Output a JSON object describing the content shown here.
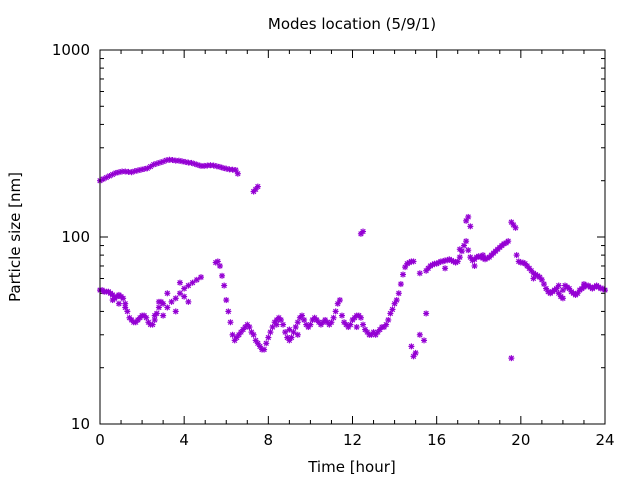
{
  "chart_data": {
    "type": "scatter",
    "title": "Modes location (5/9/1)",
    "xlabel": "Time [hour]",
    "ylabel": "Particle size [nm]",
    "xlim": [
      0,
      24
    ],
    "ylim": [
      10,
      1000
    ],
    "yscale": "log",
    "grid": false,
    "legend": "none",
    "color": "#9400d3",
    "marker": "asterisk",
    "xticks": [
      0,
      4,
      8,
      12,
      16,
      20,
      24
    ],
    "xtick_labels": [
      "0",
      "4",
      "8",
      "12",
      "16",
      "20",
      "24"
    ],
    "yticks": [
      10,
      100,
      1000
    ],
    "ytick_labels": [
      "10",
      "100",
      "1000"
    ],
    "series": [
      {
        "points": [
          [
            0.0,
            200
          ],
          [
            0.15,
            204
          ],
          [
            0.3,
            208
          ],
          [
            0.45,
            212
          ],
          [
            0.6,
            216
          ],
          [
            0.75,
            220
          ],
          [
            0.9,
            222
          ],
          [
            1.05,
            224
          ],
          [
            1.2,
            224
          ],
          [
            1.35,
            223
          ],
          [
            1.5,
            222
          ],
          [
            1.65,
            225
          ],
          [
            1.8,
            227
          ],
          [
            1.95,
            229
          ],
          [
            2.1,
            231
          ],
          [
            2.25,
            233
          ],
          [
            2.4,
            238
          ],
          [
            2.55,
            244
          ],
          [
            2.7,
            247
          ],
          [
            2.85,
            250
          ],
          [
            3.0,
            253
          ],
          [
            3.15,
            257
          ],
          [
            3.3,
            259
          ],
          [
            3.45,
            258
          ],
          [
            3.6,
            256
          ],
          [
            3.75,
            256
          ],
          [
            3.9,
            254
          ],
          [
            4.05,
            252
          ],
          [
            4.2,
            250
          ],
          [
            4.35,
            249
          ],
          [
            4.5,
            246
          ],
          [
            4.65,
            243
          ],
          [
            4.8,
            240
          ],
          [
            4.95,
            240
          ],
          [
            5.1,
            241
          ],
          [
            5.25,
            242
          ],
          [
            5.4,
            241
          ],
          [
            5.55,
            239
          ],
          [
            5.7,
            237
          ],
          [
            5.85,
            234
          ],
          [
            6.0,
            232
          ],
          [
            6.15,
            230
          ],
          [
            6.3,
            229
          ],
          [
            6.45,
            228
          ],
          [
            6.55,
            218
          ],
          [
            7.3,
            175
          ],
          [
            7.4,
            180
          ],
          [
            7.5,
            186
          ],
          [
            12.4,
            104
          ],
          [
            12.5,
            107
          ],
          [
            14.8,
            26
          ],
          [
            14.9,
            23
          ],
          [
            15.0,
            24
          ],
          [
            15.2,
            30
          ],
          [
            15.4,
            28
          ],
          [
            15.5,
            39
          ],
          [
            17.4,
            122
          ],
          [
            17.5,
            128
          ],
          [
            17.6,
            114
          ],
          [
            19.55,
            120
          ],
          [
            19.65,
            116
          ],
          [
            19.75,
            112
          ],
          [
            19.55,
            22.5
          ]
        ]
      },
      {
        "points": [
          [
            0.0,
            52
          ],
          [
            0.1,
            52
          ],
          [
            0.2,
            51
          ],
          [
            0.3,
            51
          ],
          [
            0.4,
            51
          ],
          [
            0.5,
            50
          ],
          [
            0.6,
            49
          ],
          [
            0.7,
            47
          ],
          [
            0.8,
            48
          ],
          [
            0.9,
            49
          ],
          [
            1.0,
            48
          ],
          [
            1.1,
            47
          ],
          [
            1.2,
            44
          ],
          [
            1.3,
            40
          ],
          [
            1.4,
            37
          ],
          [
            1.5,
            36
          ],
          [
            1.6,
            35
          ],
          [
            1.7,
            35
          ],
          [
            1.8,
            36
          ],
          [
            1.9,
            37
          ],
          [
            2.0,
            38
          ],
          [
            2.1,
            38
          ],
          [
            2.2,
            37
          ],
          [
            2.3,
            35
          ],
          [
            2.4,
            34
          ],
          [
            2.5,
            34
          ],
          [
            2.6,
            36
          ],
          [
            2.7,
            39
          ],
          [
            2.8,
            42
          ],
          [
            2.9,
            45
          ],
          [
            3.0,
            44
          ],
          [
            3.2,
            42
          ],
          [
            3.4,
            45
          ],
          [
            3.6,
            47
          ],
          [
            3.8,
            50
          ],
          [
            4.0,
            53
          ],
          [
            4.2,
            55
          ],
          [
            4.4,
            57
          ],
          [
            4.6,
            59
          ],
          [
            4.8,
            61
          ],
          [
            2.6,
            38
          ],
          [
            2.8,
            45
          ],
          [
            3.0,
            38
          ],
          [
            3.2,
            50
          ],
          [
            3.6,
            40
          ],
          [
            3.8,
            57
          ],
          [
            4.0,
            48
          ],
          [
            4.2,
            45
          ],
          [
            0.6,
            46
          ],
          [
            0.9,
            44
          ],
          [
            1.2,
            42
          ],
          [
            5.5,
            73
          ],
          [
            5.6,
            74
          ],
          [
            5.7,
            70
          ],
          [
            5.8,
            62
          ],
          [
            5.9,
            55
          ],
          [
            6.0,
            46
          ],
          [
            6.1,
            40
          ],
          [
            6.2,
            35
          ],
          [
            6.3,
            30
          ],
          [
            6.4,
            28
          ],
          [
            6.5,
            29
          ],
          [
            6.6,
            30
          ],
          [
            6.7,
            31
          ],
          [
            6.8,
            32
          ],
          [
            6.9,
            33
          ],
          [
            7.0,
            34
          ],
          [
            7.1,
            33
          ],
          [
            7.2,
            31
          ],
          [
            7.3,
            30
          ],
          [
            7.4,
            28
          ],
          [
            7.5,
            27
          ],
          [
            7.6,
            26
          ],
          [
            7.7,
            25
          ],
          [
            7.8,
            25
          ],
          [
            7.9,
            27
          ],
          [
            8.0,
            29
          ],
          [
            8.1,
            31
          ],
          [
            8.2,
            33
          ],
          [
            8.3,
            35
          ],
          [
            8.4,
            36
          ],
          [
            8.5,
            37
          ],
          [
            8.6,
            36
          ],
          [
            8.7,
            34
          ],
          [
            8.8,
            31
          ],
          [
            8.9,
            29
          ],
          [
            9.0,
            28
          ],
          [
            9.1,
            29
          ],
          [
            9.2,
            31
          ],
          [
            9.3,
            33
          ],
          [
            9.4,
            35
          ],
          [
            9.5,
            37
          ],
          [
            9.6,
            38
          ],
          [
            9.7,
            36
          ],
          [
            9.8,
            34
          ],
          [
            9.9,
            33
          ],
          [
            10.0,
            34
          ],
          [
            10.1,
            36
          ],
          [
            10.2,
            37
          ],
          [
            10.3,
            36
          ],
          [
            10.4,
            35
          ],
          [
            10.5,
            34
          ],
          [
            10.6,
            35
          ],
          [
            10.7,
            36
          ],
          [
            10.8,
            35
          ],
          [
            10.9,
            34
          ],
          [
            11.0,
            35
          ],
          [
            11.1,
            37
          ],
          [
            11.2,
            40
          ],
          [
            11.3,
            44
          ],
          [
            11.4,
            46
          ],
          [
            11.5,
            38
          ],
          [
            11.6,
            35
          ],
          [
            11.7,
            34
          ],
          [
            11.8,
            33
          ],
          [
            11.9,
            34
          ],
          [
            12.0,
            36
          ],
          [
            12.1,
            37
          ],
          [
            12.2,
            38
          ],
          [
            12.3,
            38
          ],
          [
            12.4,
            37
          ],
          [
            12.5,
            34
          ],
          [
            12.6,
            32
          ],
          [
            12.7,
            31
          ],
          [
            12.8,
            30
          ],
          [
            12.9,
            30
          ],
          [
            13.0,
            31
          ],
          [
            13.1,
            30
          ],
          [
            13.2,
            31
          ],
          [
            13.3,
            32
          ],
          [
            13.4,
            33
          ],
          [
            13.5,
            33
          ],
          [
            13.6,
            34
          ],
          [
            13.7,
            36
          ],
          [
            13.8,
            39
          ],
          [
            13.9,
            41
          ],
          [
            14.0,
            44
          ],
          [
            14.1,
            46
          ],
          [
            14.2,
            50
          ],
          [
            14.3,
            56
          ],
          [
            14.4,
            63
          ],
          [
            14.5,
            69
          ],
          [
            14.6,
            72
          ],
          [
            14.7,
            73
          ],
          [
            14.8,
            74
          ],
          [
            14.9,
            74
          ],
          [
            9.0,
            32
          ],
          [
            9.4,
            30
          ],
          [
            8.4,
            34
          ],
          [
            12.2,
            33
          ],
          [
            15.5,
            66
          ],
          [
            15.6,
            68
          ],
          [
            15.7,
            70
          ],
          [
            15.8,
            71
          ],
          [
            15.9,
            72
          ],
          [
            16.0,
            72
          ],
          [
            16.1,
            73
          ],
          [
            16.2,
            74
          ],
          [
            16.3,
            74
          ],
          [
            16.4,
            75
          ],
          [
            16.5,
            75
          ],
          [
            16.6,
            76
          ],
          [
            16.7,
            75
          ],
          [
            16.8,
            74
          ],
          [
            16.9,
            73
          ],
          [
            17.0,
            74
          ],
          [
            17.1,
            78
          ],
          [
            17.2,
            84
          ],
          [
            17.3,
            90
          ],
          [
            17.4,
            95
          ],
          [
            17.5,
            85
          ],
          [
            17.6,
            78
          ],
          [
            17.7,
            75
          ],
          [
            17.8,
            76
          ],
          [
            17.9,
            78
          ],
          [
            18.0,
            79
          ],
          [
            18.1,
            78
          ],
          [
            18.2,
            77
          ],
          [
            18.3,
            76
          ],
          [
            18.4,
            77
          ],
          [
            18.5,
            78
          ],
          [
            18.6,
            80
          ],
          [
            18.7,
            82
          ],
          [
            18.8,
            84
          ],
          [
            18.9,
            86
          ],
          [
            19.0,
            88
          ],
          [
            19.1,
            90
          ],
          [
            19.2,
            92
          ],
          [
            19.3,
            93
          ],
          [
            19.4,
            95
          ],
          [
            15.2,
            64
          ],
          [
            16.4,
            68
          ],
          [
            17.1,
            86
          ],
          [
            17.8,
            70
          ],
          [
            18.2,
            80
          ],
          [
            19.8,
            80
          ],
          [
            19.9,
            74
          ],
          [
            20.0,
            73
          ],
          [
            20.1,
            73
          ],
          [
            20.2,
            72
          ],
          [
            20.3,
            70
          ],
          [
            20.4,
            68
          ],
          [
            20.5,
            66
          ],
          [
            20.6,
            64
          ],
          [
            20.7,
            63
          ],
          [
            20.8,
            62
          ],
          [
            20.9,
            61
          ],
          [
            21.0,
            59
          ],
          [
            21.1,
            56
          ],
          [
            21.2,
            53
          ],
          [
            21.3,
            51
          ],
          [
            21.4,
            50
          ],
          [
            21.5,
            51
          ],
          [
            21.6,
            52
          ],
          [
            21.7,
            53
          ],
          [
            21.8,
            50
          ],
          [
            21.9,
            48
          ],
          [
            22.0,
            52
          ],
          [
            22.1,
            55
          ],
          [
            22.2,
            54
          ],
          [
            22.3,
            53
          ],
          [
            22.4,
            51
          ],
          [
            22.5,
            50
          ],
          [
            22.6,
            49
          ],
          [
            22.7,
            50
          ],
          [
            22.8,
            52
          ],
          [
            22.9,
            53
          ],
          [
            23.0,
            54
          ],
          [
            23.1,
            55
          ],
          [
            23.2,
            55
          ],
          [
            23.3,
            54
          ],
          [
            23.4,
            53
          ],
          [
            23.5,
            54
          ],
          [
            23.6,
            55
          ],
          [
            23.7,
            54
          ],
          [
            23.8,
            53
          ],
          [
            23.9,
            53
          ],
          [
            24.0,
            52
          ],
          [
            20.6,
            60
          ],
          [
            21.8,
            55
          ],
          [
            22.0,
            47
          ],
          [
            23.0,
            56
          ]
        ]
      }
    ]
  }
}
